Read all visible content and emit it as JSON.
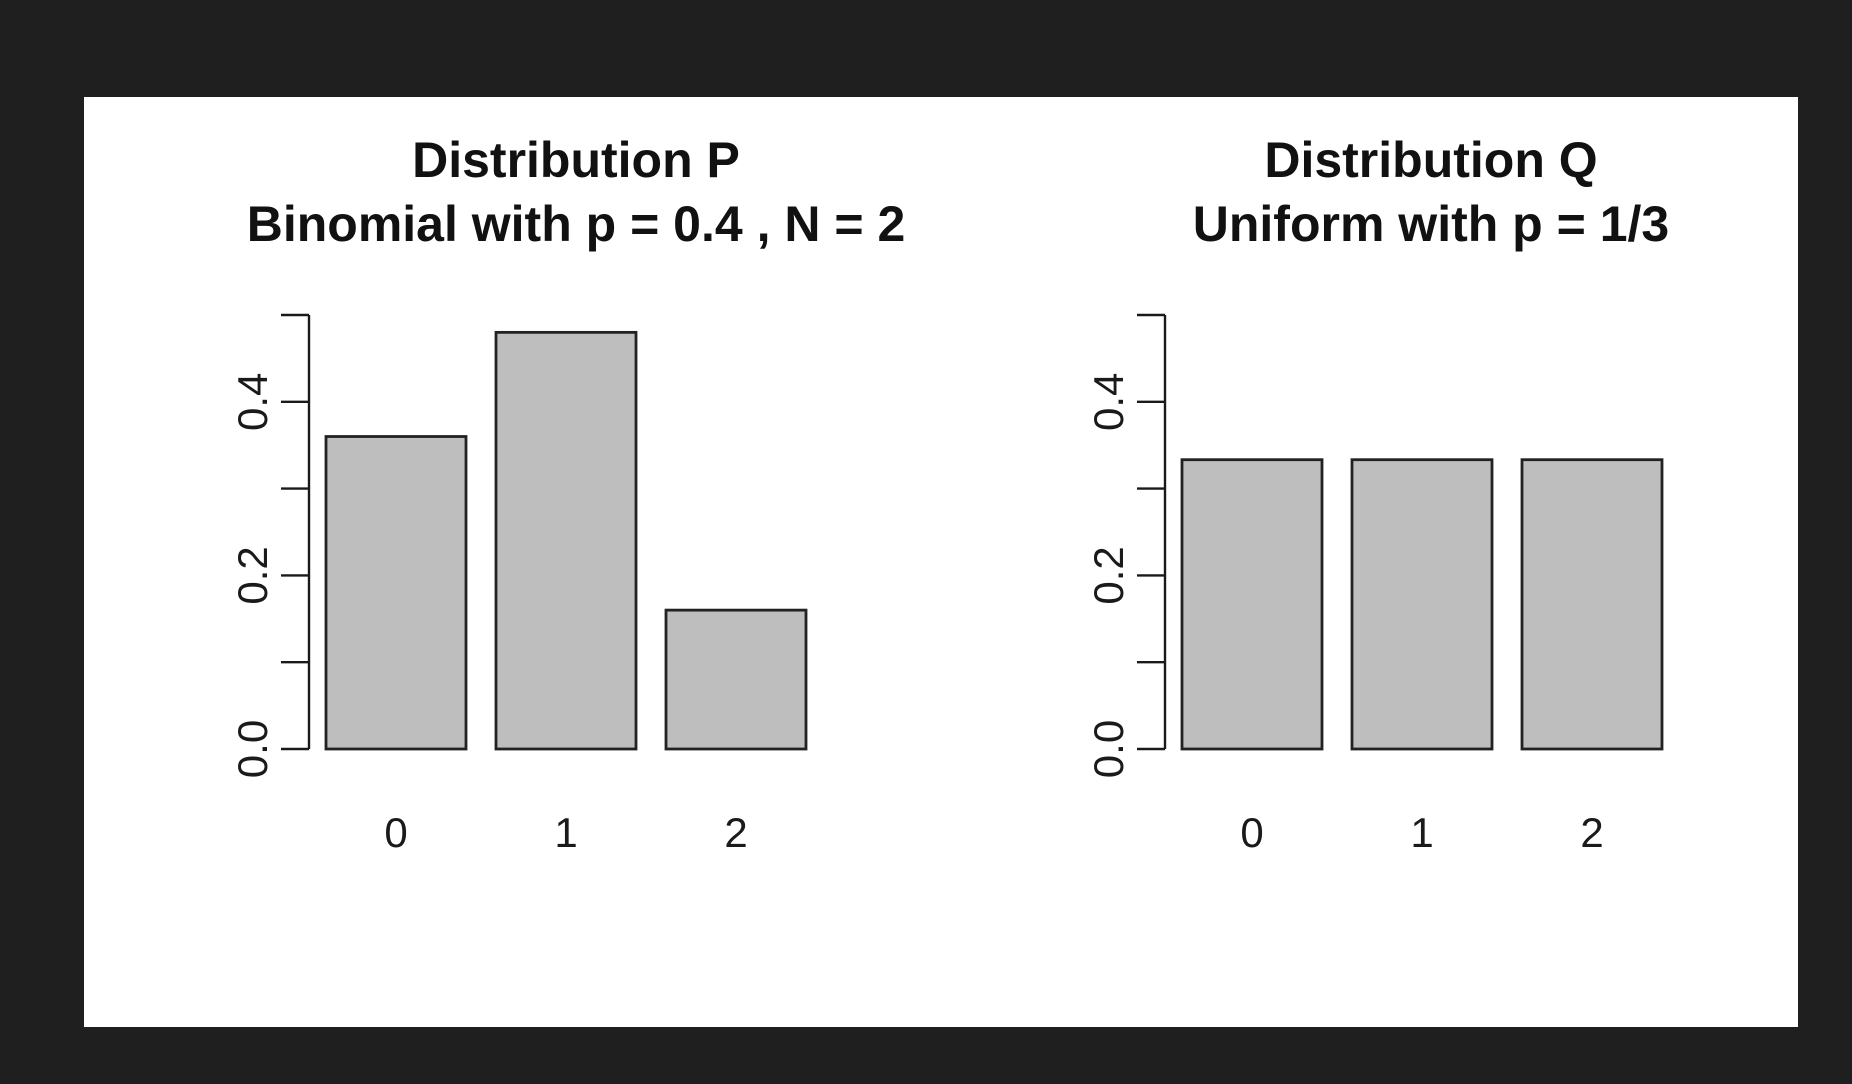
{
  "chart_data": [
    {
      "type": "bar",
      "title": "Distribution P",
      "subtitle": "Binomial with p = 0.4 , N = 2",
      "categories": [
        "0",
        "1",
        "2"
      ],
      "values": [
        0.36,
        0.48,
        0.16
      ],
      "ylim": [
        0,
        0.5
      ],
      "yticks": [
        0.0,
        0.1,
        0.2,
        0.3,
        0.4,
        0.5
      ],
      "ytick_labels": [
        "0.0",
        "",
        "0.2",
        "",
        "0.4",
        ""
      ],
      "bar_color": "#bebebe",
      "grid": false,
      "xlabel": "",
      "ylabel": ""
    },
    {
      "type": "bar",
      "title": "Distribution Q",
      "subtitle": "Uniform with p = 1/3",
      "categories": [
        "0",
        "1",
        "2"
      ],
      "values": [
        0.3333,
        0.3333,
        0.3333
      ],
      "ylim": [
        0,
        0.5
      ],
      "yticks": [
        0.0,
        0.1,
        0.2,
        0.3,
        0.4,
        0.5
      ],
      "ytick_labels": [
        "0.0",
        "",
        "0.2",
        "",
        "0.4",
        ""
      ],
      "bar_color": "#bebebe",
      "grid": false,
      "xlabel": "",
      "ylabel": ""
    }
  ]
}
